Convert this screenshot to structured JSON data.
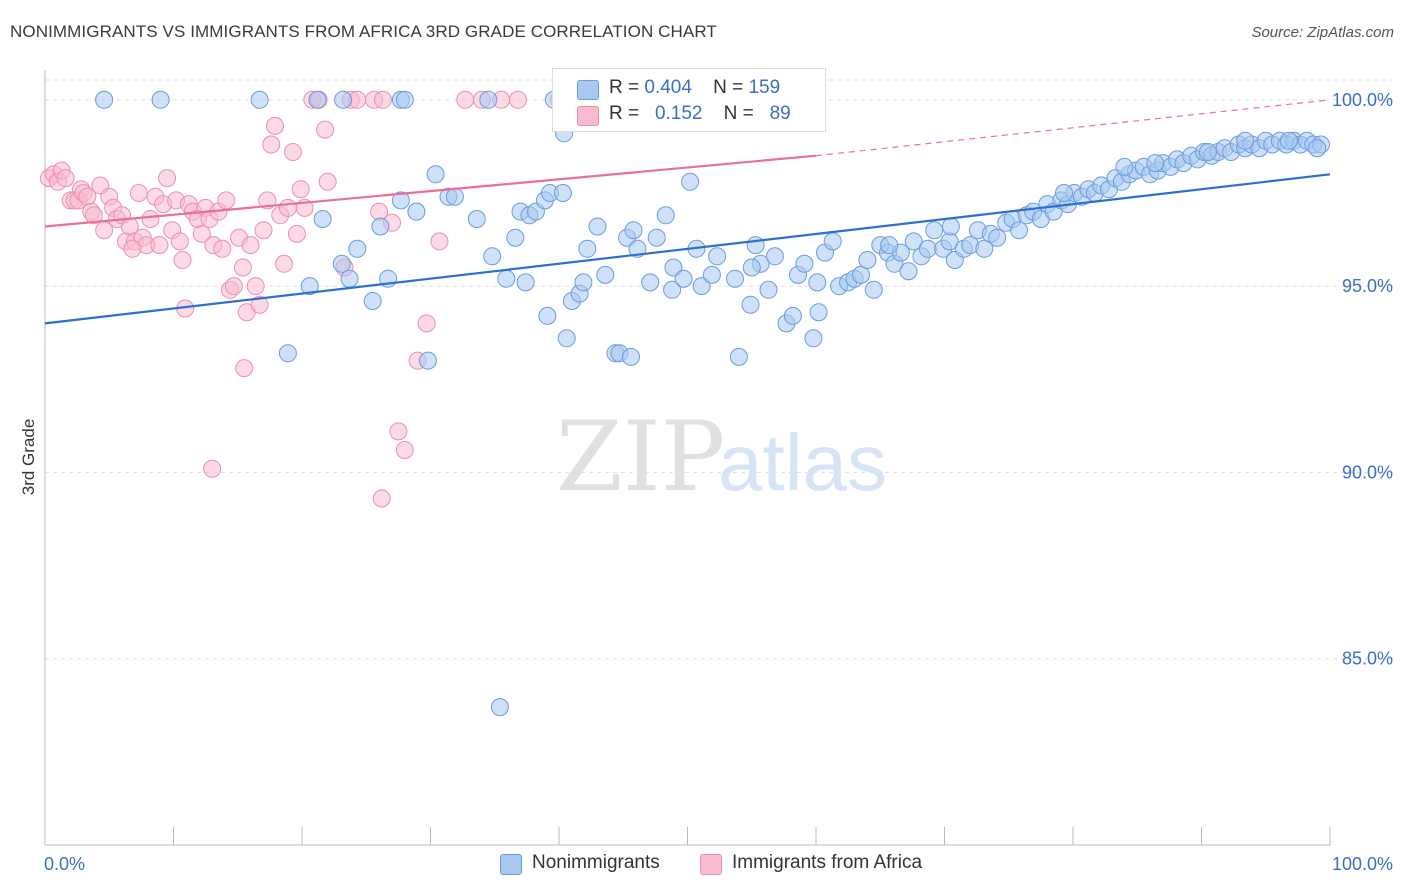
{
  "title": "NONIMMIGRANTS VS IMMIGRANTS FROM AFRICA 3RD GRADE CORRELATION CHART",
  "source": "Source: ZipAtlas.com",
  "watermark": {
    "zip": "ZIP",
    "atlas": "atlas"
  },
  "legend_top": {
    "rows": [
      {
        "r_label": "R =",
        "r_value": "0.404",
        "n_label": "N =",
        "n_value": "159"
      },
      {
        "r_label": "R =",
        "r_value": "0.152",
        "n_label": "N =",
        "n_value": "89"
      }
    ]
  },
  "legend_bottom": [
    "Nonimmigrants",
    "Immigrants from Africa"
  ],
  "colors": {
    "blue_fill": "#a8c8f0",
    "blue_stroke": "#6a9ce0",
    "blue_line": "#2d6fd0",
    "pink_fill": "#f7bccd",
    "pink_stroke": "#ef8fae",
    "pink_line": "#e8709a",
    "tick_label": "#3a6fc8",
    "grid": "#dddddd"
  },
  "chart_data": {
    "type": "scatter",
    "title": "NONIMMIGRANTS VS IMMIGRANTS FROM AFRICA 3RD GRADE CORRELATION CHART",
    "xlabel": "",
    "ylabel": "3rd Grade",
    "xlim": [
      0,
      100
    ],
    "ylim": [
      80.0,
      100.8
    ],
    "x_tick_labels": [
      "0.0%",
      "100.0%"
    ],
    "y_ticks": [
      85,
      90,
      95,
      100
    ],
    "y_tick_labels": [
      "85.0%",
      "90.0%",
      "95.0%",
      "100.0%"
    ],
    "grid": "horizontal dashed",
    "legend_placement": "bottom-center",
    "series": [
      {
        "name": "Nonimmigrants",
        "color": "#a8c8f0",
        "r": 0.404,
        "n": 159,
        "trend": {
          "x": [
            0,
            100
          ],
          "y": [
            94.0,
            98.0
          ]
        },
        "points": [
          [
            4.6,
            100
          ],
          [
            9.0,
            100
          ],
          [
            16.7,
            100
          ],
          [
            21.2,
            100
          ],
          [
            23.2,
            100
          ],
          [
            27.7,
            100
          ],
          [
            28.0,
            100
          ],
          [
            34.5,
            100
          ],
          [
            39.6,
            100
          ],
          [
            40.4,
            99.1
          ],
          [
            18.9,
            93.2
          ],
          [
            20.6,
            95.0
          ],
          [
            21.6,
            96.8
          ],
          [
            23.1,
            95.6
          ],
          [
            23.7,
            95.2
          ],
          [
            24.3,
            96.0
          ],
          [
            25.5,
            94.6
          ],
          [
            26.1,
            96.6
          ],
          [
            26.7,
            95.2
          ],
          [
            27.7,
            97.3
          ],
          [
            28.9,
            97.0
          ],
          [
            30.4,
            98.0
          ],
          [
            29.8,
            93.0
          ],
          [
            31.4,
            97.4
          ],
          [
            31.9,
            97.4
          ],
          [
            33.6,
            96.8
          ],
          [
            34.8,
            95.8
          ],
          [
            35.9,
            95.2
          ],
          [
            35.4,
            83.7
          ],
          [
            36.6,
            96.3
          ],
          [
            37.0,
            97.0
          ],
          [
            37.4,
            95.1
          ],
          [
            37.7,
            96.9
          ],
          [
            38.2,
            97.0
          ],
          [
            38.9,
            97.3
          ],
          [
            39.3,
            97.5
          ],
          [
            39.1,
            94.2
          ],
          [
            40.6,
            93.6
          ],
          [
            40.3,
            97.5
          ],
          [
            41.0,
            94.6
          ],
          [
            41.6,
            94.8
          ],
          [
            41.9,
            95.1
          ],
          [
            42.2,
            96.0
          ],
          [
            43.0,
            96.6
          ],
          [
            43.6,
            95.3
          ],
          [
            44.4,
            93.2
          ],
          [
            44.7,
            93.2
          ],
          [
            45.3,
            96.3
          ],
          [
            45.8,
            96.5
          ],
          [
            45.6,
            93.1
          ],
          [
            46.1,
            96.0
          ],
          [
            47.1,
            95.1
          ],
          [
            47.6,
            96.3
          ],
          [
            48.3,
            96.9
          ],
          [
            48.8,
            94.9
          ],
          [
            48.9,
            95.5
          ],
          [
            49.7,
            95.2
          ],
          [
            50.2,
            97.8
          ],
          [
            50.7,
            96.0
          ],
          [
            51.1,
            95.0
          ],
          [
            51.9,
            95.3
          ],
          [
            52.3,
            95.8
          ],
          [
            53.7,
            95.2
          ],
          [
            54.0,
            93.1
          ],
          [
            54.9,
            94.5
          ],
          [
            55.3,
            96.1
          ],
          [
            55.7,
            95.6
          ],
          [
            56.3,
            94.9
          ],
          [
            56.8,
            95.8
          ],
          [
            57.7,
            94.0
          ],
          [
            58.2,
            94.2
          ],
          [
            58.6,
            95.3
          ],
          [
            59.1,
            95.6
          ],
          [
            59.8,
            93.6
          ],
          [
            60.2,
            94.3
          ],
          [
            60.7,
            95.9
          ],
          [
            61.3,
            96.2
          ],
          [
            61.8,
            95.0
          ],
          [
            62.5,
            95.1
          ],
          [
            63.0,
            95.2
          ],
          [
            63.5,
            95.3
          ],
          [
            64.0,
            95.7
          ],
          [
            64.5,
            94.9
          ],
          [
            65.0,
            96.1
          ],
          [
            65.6,
            95.9
          ],
          [
            66.1,
            95.6
          ],
          [
            66.6,
            95.9
          ],
          [
            67.2,
            95.4
          ],
          [
            67.6,
            96.2
          ],
          [
            68.2,
            95.8
          ],
          [
            68.7,
            96.0
          ],
          [
            69.2,
            96.5
          ],
          [
            69.9,
            96.0
          ],
          [
            70.4,
            96.2
          ],
          [
            70.8,
            95.7
          ],
          [
            71.5,
            96.0
          ],
          [
            72.0,
            96.1
          ],
          [
            72.6,
            96.5
          ],
          [
            73.1,
            96.0
          ],
          [
            73.6,
            96.4
          ],
          [
            74.1,
            96.3
          ],
          [
            74.8,
            96.7
          ],
          [
            75.3,
            96.8
          ],
          [
            75.8,
            96.5
          ],
          [
            76.4,
            96.9
          ],
          [
            76.9,
            97.0
          ],
          [
            77.5,
            96.8
          ],
          [
            78.0,
            97.2
          ],
          [
            78.5,
            97.0
          ],
          [
            79.1,
            97.3
          ],
          [
            79.6,
            97.2
          ],
          [
            80.1,
            97.5
          ],
          [
            80.7,
            97.4
          ],
          [
            81.2,
            97.6
          ],
          [
            81.7,
            97.5
          ],
          [
            82.2,
            97.7
          ],
          [
            82.8,
            97.6
          ],
          [
            83.3,
            97.9
          ],
          [
            83.8,
            97.8
          ],
          [
            84.4,
            98.0
          ],
          [
            84.9,
            98.1
          ],
          [
            85.5,
            98.2
          ],
          [
            86.0,
            98.0
          ],
          [
            86.6,
            98.1
          ],
          [
            87.0,
            98.3
          ],
          [
            87.6,
            98.2
          ],
          [
            88.1,
            98.4
          ],
          [
            88.6,
            98.3
          ],
          [
            89.2,
            98.5
          ],
          [
            89.7,
            98.4
          ],
          [
            90.2,
            98.6
          ],
          [
            90.8,
            98.5
          ],
          [
            91.3,
            98.6
          ],
          [
            91.8,
            98.7
          ],
          [
            92.3,
            98.6
          ],
          [
            92.9,
            98.8
          ],
          [
            93.4,
            98.7
          ],
          [
            93.9,
            98.8
          ],
          [
            94.5,
            98.7
          ],
          [
            95.0,
            98.9
          ],
          [
            95.5,
            98.8
          ],
          [
            96.1,
            98.9
          ],
          [
            96.6,
            98.8
          ],
          [
            97.2,
            98.9
          ],
          [
            97.7,
            98.8
          ],
          [
            98.2,
            98.9
          ],
          [
            98.7,
            98.8
          ],
          [
            99.3,
            98.8
          ],
          [
            99.0,
            98.7
          ],
          [
            96.8,
            98.9
          ],
          [
            93.4,
            98.9
          ],
          [
            90.5,
            98.6
          ],
          [
            86.4,
            98.3
          ],
          [
            84.0,
            98.2
          ],
          [
            79.3,
            97.5
          ],
          [
            70.5,
            96.6
          ],
          [
            65.7,
            96.1
          ],
          [
            60.1,
            95.1
          ],
          [
            55.0,
            95.5
          ]
        ]
      },
      {
        "name": "Immigrants from Africa",
        "color": "#f7bccd",
        "r": 0.152,
        "n": 89,
        "trend": {
          "x": [
            0,
            60
          ],
          "y": [
            96.6,
            98.5
          ]
        },
        "trend_extension": {
          "x": [
            60,
            100
          ],
          "y": [
            98.5,
            100.0
          ]
        },
        "points": [
          [
            0.3,
            97.9
          ],
          [
            0.7,
            98.0
          ],
          [
            1.0,
            97.8
          ],
          [
            1.3,
            98.1
          ],
          [
            1.6,
            97.9
          ],
          [
            2.0,
            97.3
          ],
          [
            2.3,
            97.3
          ],
          [
            2.6,
            97.3
          ],
          [
            2.8,
            97.6
          ],
          [
            3.0,
            97.5
          ],
          [
            3.3,
            97.4
          ],
          [
            3.6,
            97.0
          ],
          [
            3.8,
            96.9
          ],
          [
            4.3,
            97.7
          ],
          [
            4.6,
            96.5
          ],
          [
            5.0,
            97.4
          ],
          [
            5.3,
            97.1
          ],
          [
            5.6,
            96.8
          ],
          [
            6.0,
            96.9
          ],
          [
            6.3,
            96.2
          ],
          [
            6.6,
            96.6
          ],
          [
            7.0,
            96.2
          ],
          [
            7.3,
            97.5
          ],
          [
            7.6,
            96.3
          ],
          [
            7.9,
            96.1
          ],
          [
            8.2,
            96.8
          ],
          [
            8.6,
            97.4
          ],
          [
            8.9,
            96.1
          ],
          [
            9.2,
            97.2
          ],
          [
            9.5,
            97.9
          ],
          [
            9.9,
            96.5
          ],
          [
            10.2,
            97.3
          ],
          [
            10.5,
            96.2
          ],
          [
            10.9,
            94.4
          ],
          [
            11.2,
            97.2
          ],
          [
            11.5,
            97.0
          ],
          [
            11.9,
            96.8
          ],
          [
            12.2,
            96.4
          ],
          [
            12.5,
            97.1
          ],
          [
            12.8,
            96.8
          ],
          [
            13.1,
            96.1
          ],
          [
            13.5,
            97.0
          ],
          [
            13.8,
            96.0
          ],
          [
            14.1,
            97.3
          ],
          [
            14.4,
            94.9
          ],
          [
            14.7,
            95.0
          ],
          [
            15.1,
            96.3
          ],
          [
            15.4,
            95.5
          ],
          [
            15.7,
            94.3
          ],
          [
            16.0,
            96.1
          ],
          [
            16.4,
            95.0
          ],
          [
            16.7,
            94.5
          ],
          [
            17.0,
            96.5
          ],
          [
            17.3,
            97.3
          ],
          [
            17.6,
            98.8
          ],
          [
            17.9,
            99.3
          ],
          [
            18.3,
            96.9
          ],
          [
            18.6,
            95.6
          ],
          [
            18.9,
            97.1
          ],
          [
            19.3,
            98.6
          ],
          [
            19.6,
            96.4
          ],
          [
            19.9,
            97.6
          ],
          [
            20.2,
            97.1
          ],
          [
            20.8,
            100
          ],
          [
            21.3,
            100
          ],
          [
            21.8,
            99.2
          ],
          [
            22.0,
            97.8
          ],
          [
            23.3,
            95.5
          ],
          [
            23.8,
            100
          ],
          [
            24.3,
            100
          ],
          [
            25.6,
            100
          ],
          [
            26.0,
            97.0
          ],
          [
            26.3,
            100
          ],
          [
            27.0,
            96.7
          ],
          [
            28.0,
            90.6
          ],
          [
            29.7,
            94.0
          ],
          [
            27.5,
            91.1
          ],
          [
            13.0,
            90.1
          ],
          [
            15.5,
            92.8
          ],
          [
            26.2,
            89.3
          ],
          [
            29.0,
            93.0
          ],
          [
            30.7,
            96.2
          ],
          [
            32.7,
            100
          ],
          [
            34.0,
            100
          ],
          [
            35.5,
            100
          ],
          [
            36.8,
            100
          ],
          [
            40.0,
            100
          ],
          [
            6.8,
            96.0
          ],
          [
            10.7,
            95.7
          ]
        ]
      }
    ]
  }
}
